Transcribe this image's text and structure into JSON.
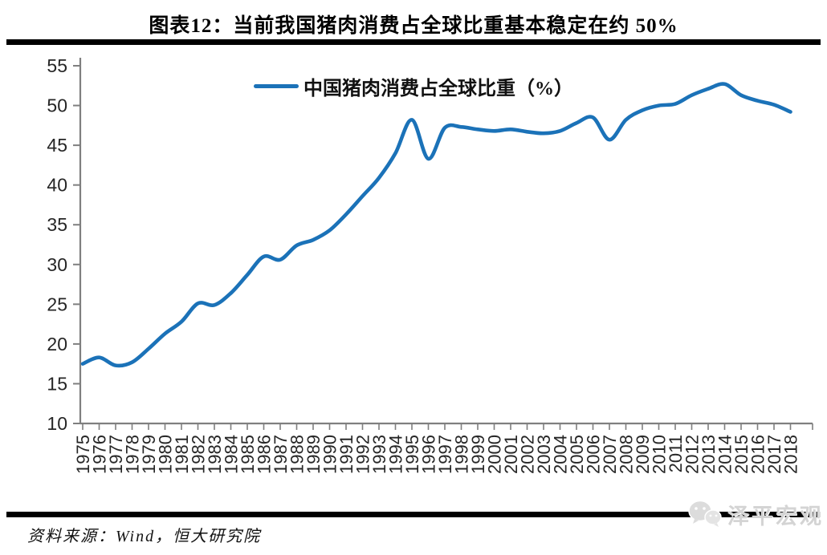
{
  "header": {
    "title": "图表12：当前我国猪肉消费占全球比重基本稳定在约 50%"
  },
  "legend": {
    "label": "中国猪肉消费占全球比重（%）"
  },
  "footer": {
    "source": "资料来源：Wind，恒大研究院",
    "watermark": "泽平宏观",
    "watermark_icon": "wechat-icon"
  },
  "colors": {
    "line": "#1B72B8",
    "axis": "#7F7F7F",
    "tick_label": "#262626",
    "rule": "#000000",
    "watermark": "#D4D4D4"
  },
  "chart_data": {
    "type": "line",
    "title": "图表12：当前我国猪肉消费占全球比重基本稳定在约 50%",
    "legend": [
      "中国猪肉消费占全球比重（%）"
    ],
    "legend_position": "top-center",
    "grid": false,
    "smooth": true,
    "xlabel": "",
    "ylabel": "",
    "ylim": [
      10,
      55
    ],
    "yticks": [
      10,
      15,
      20,
      25,
      30,
      35,
      40,
      45,
      50,
      55
    ],
    "x": [
      1975,
      1976,
      1977,
      1978,
      1979,
      1980,
      1981,
      1982,
      1983,
      1984,
      1985,
      1986,
      1987,
      1988,
      1989,
      1990,
      1991,
      1992,
      1993,
      1994,
      1995,
      1996,
      1997,
      1998,
      1999,
      2000,
      2001,
      2002,
      2003,
      2004,
      2005,
      2006,
      2007,
      2008,
      2009,
      2010,
      2011,
      2012,
      2013,
      2014,
      2015,
      2016,
      2017,
      2018
    ],
    "series": [
      {
        "name": "中国猪肉消费占全球比重（%）",
        "color": "#1B72B8",
        "values": [
          17.5,
          18.3,
          17.3,
          17.7,
          19.4,
          21.3,
          22.8,
          25.1,
          24.9,
          26.4,
          28.7,
          31.0,
          30.6,
          32.4,
          33.1,
          34.3,
          36.3,
          38.6,
          40.9,
          44.0,
          48.2,
          43.3,
          47.2,
          47.3,
          47.0,
          46.8,
          47.0,
          46.7,
          46.5,
          46.8,
          47.8,
          48.5,
          45.7,
          48.2,
          49.4,
          50.0,
          50.2,
          51.3,
          52.1,
          52.7,
          51.3,
          50.6,
          50.1,
          49.2
        ]
      }
    ]
  }
}
